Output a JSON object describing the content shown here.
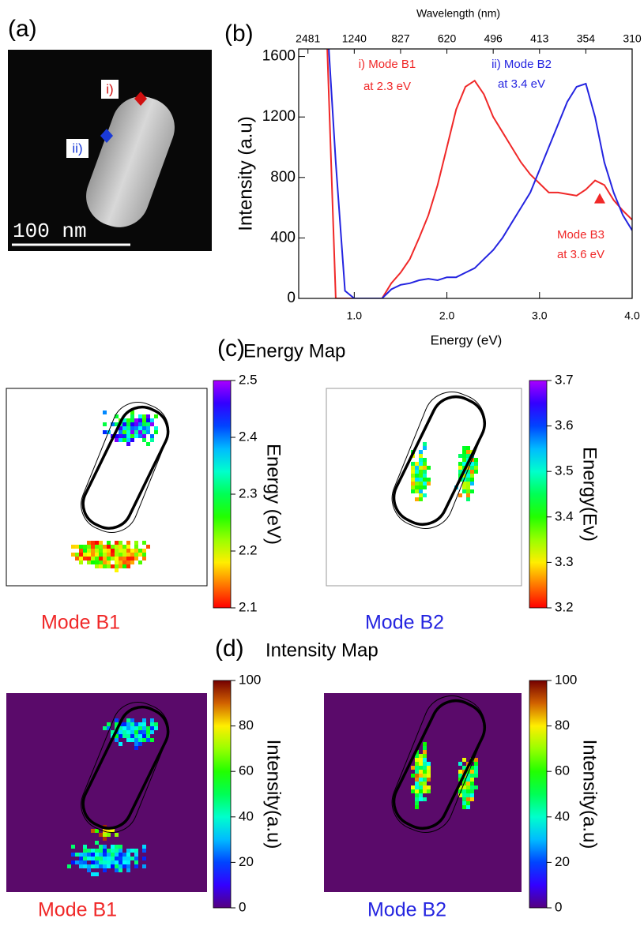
{
  "panel_a": {
    "label": "(a)",
    "marker_1": "i)",
    "marker_2": "ii)",
    "scale_bar": "100 nm"
  },
  "chart_data": {
    "type": "line",
    "panel_label": "(b)",
    "top_axis_label": "Wavelength (nm)",
    "x_label": "Energy (eV)",
    "y_label": "Intensity (a.u)",
    "x": [
      0.7,
      0.8,
      0.9,
      1.0,
      1.1,
      1.2,
      1.3,
      1.4,
      1.5,
      1.6,
      1.7,
      1.8,
      1.9,
      2.0,
      2.1,
      2.2,
      2.3,
      2.4,
      2.5,
      2.6,
      2.7,
      2.8,
      2.9,
      3.0,
      3.1,
      3.2,
      3.3,
      3.4,
      3.5,
      3.6,
      3.7,
      3.8,
      3.9,
      4.0
    ],
    "series": [
      {
        "name": "i) Mode B1",
        "color": "#f02828",
        "values": [
          1800,
          0,
          0,
          0,
          0,
          0,
          0,
          100,
          170,
          260,
          400,
          550,
          750,
          1000,
          1250,
          1400,
          1440,
          1350,
          1200,
          1100,
          1000,
          900,
          820,
          760,
          700,
          700,
          690,
          680,
          720,
          780,
          750,
          650,
          580,
          520
        ]
      },
      {
        "name": "ii) Mode B2",
        "color": "#2424e0",
        "values": [
          1900,
          900,
          50,
          0,
          0,
          0,
          0,
          60,
          90,
          100,
          120,
          130,
          120,
          140,
          140,
          170,
          200,
          260,
          320,
          400,
          500,
          600,
          700,
          850,
          1000,
          1150,
          1300,
          1400,
          1420,
          1200,
          900,
          700,
          550,
          450
        ]
      }
    ],
    "annotations": [
      {
        "text": "i) Mode B1",
        "color": "#f02828"
      },
      {
        "text": "at 2.3 eV",
        "color": "#f02828"
      },
      {
        "text": "ii) Mode B2",
        "color": "#2424e0"
      },
      {
        "text": "at 3.4 eV",
        "color": "#2424e0"
      },
      {
        "text": "Mode B3",
        "color": "#f02828"
      },
      {
        "text": "at 3.6 eV",
        "color": "#f02828"
      }
    ],
    "b3_marker": {
      "x": 3.65,
      "y": 660,
      "color": "#f02828"
    },
    "xlim": [
      0.4,
      4.0
    ],
    "ylim": [
      0,
      1650
    ],
    "xticks": [
      {
        "value": 1.0,
        "label": "1.0"
      },
      {
        "value": 2.0,
        "label": "2.0"
      },
      {
        "value": 3.0,
        "label": "3.0"
      },
      {
        "value": 4.0,
        "label": "4.0"
      }
    ],
    "yticks": [
      0,
      400,
      800,
      1200,
      1600
    ],
    "top_ticks": [
      {
        "value": 0.5,
        "label": "2481"
      },
      {
        "value": 1.0,
        "label": "1240"
      },
      {
        "value": 1.5,
        "label": "827"
      },
      {
        "value": 2.0,
        "label": "620"
      },
      {
        "value": 2.5,
        "label": "496"
      },
      {
        "value": 3.0,
        "label": "413"
      },
      {
        "value": 3.5,
        "label": "354"
      },
      {
        "value": 4.0,
        "label": "310"
      }
    ]
  },
  "energy_map": {
    "label": "(c)",
    "title": "Energy Map",
    "maps": [
      {
        "mode": "Mode B1",
        "mode_color": "#f02828",
        "colorbar_label": "Energy (eV)",
        "range": [
          2.1,
          2.5
        ],
        "ticks": [
          2.5,
          2.4,
          2.3,
          2.2,
          2.1
        ]
      },
      {
        "mode": "Mode B2",
        "mode_color": "#2424e0",
        "colorbar_label": "Energy(Ev)",
        "range": [
          3.2,
          3.7
        ],
        "ticks": [
          3.7,
          3.6,
          3.5,
          3.4,
          3.3,
          3.2
        ]
      }
    ]
  },
  "intensity_map": {
    "label": "(d)",
    "title": "Intensity Map",
    "maps": [
      {
        "mode": "Mode B1",
        "mode_color": "#f02828",
        "colorbar_label": "Intensity(a.u)",
        "range": [
          0,
          100
        ],
        "ticks": [
          100,
          80,
          60,
          40,
          20,
          0
        ]
      },
      {
        "mode": "Mode B2",
        "mode_color": "#2424e0",
        "colorbar_label": "Intensity(a.u)",
        "range": [
          0,
          100
        ],
        "ticks": [
          100,
          80,
          60,
          40,
          20,
          0
        ]
      }
    ]
  }
}
